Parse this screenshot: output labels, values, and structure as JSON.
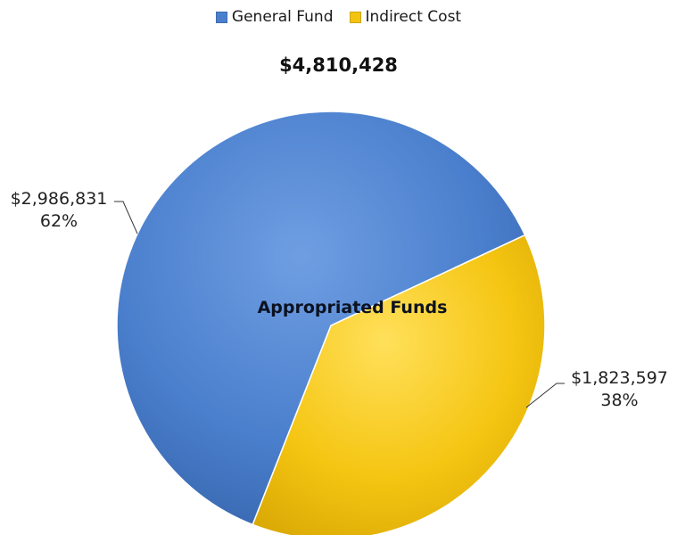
{
  "legend": [
    {
      "label": "General Fund",
      "color": "#4a7fcd"
    },
    {
      "label": "Indirect Cost",
      "color": "#f2c311"
    }
  ],
  "total_label": "$4,810,428",
  "center_label": "Appropriated Funds",
  "chart_data": {
    "type": "pie",
    "title": "$4,810,428",
    "center_label": "Appropriated Funds",
    "legend_position": "top",
    "slices": [
      {
        "name": "General Fund",
        "value": 2986831,
        "value_label": "$2,986,831",
        "percent": 62,
        "percent_label": "62%",
        "color": "#4a7fcd"
      },
      {
        "name": "Indirect Cost",
        "value": 1823597,
        "value_label": "$1,823,597",
        "percent": 38,
        "percent_label": "38%",
        "color": "#f2c311"
      }
    ]
  }
}
